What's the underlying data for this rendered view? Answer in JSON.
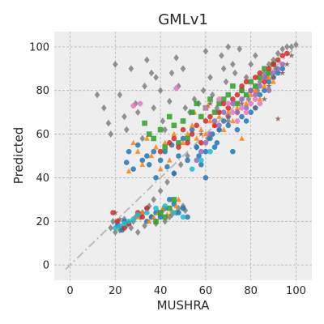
{
  "chart_data": {
    "type": "scatter",
    "title": "GMLv1",
    "xlabel": "MUSHRA",
    "ylabel": "Predicted",
    "xlim": [
      -7,
      107
    ],
    "ylim": [
      -7,
      107
    ],
    "xticks": [
      0,
      20,
      40,
      60,
      80,
      100
    ],
    "yticks": [
      0,
      20,
      40,
      60,
      80,
      100
    ],
    "grid": true,
    "legend": "none",
    "reference_line": {
      "from": [
        -2,
        -2
      ],
      "to": [
        100,
        100
      ],
      "color": "#bbbbbb",
      "style": "dashdot"
    },
    "series": [
      {
        "color": "#7f7f7f",
        "marker": "diamond",
        "points": [
          [
            12,
            78
          ],
          [
            15,
            72
          ],
          [
            17,
            65
          ],
          [
            18,
            60
          ],
          [
            20,
            92
          ],
          [
            22,
            78
          ],
          [
            24,
            68
          ],
          [
            25,
            62
          ],
          [
            27,
            90
          ],
          [
            29,
            74
          ],
          [
            30,
            70
          ],
          [
            32,
            58
          ],
          [
            33,
            82
          ],
          [
            34,
            94
          ],
          [
            36,
            88
          ],
          [
            37,
            72
          ],
          [
            38,
            86
          ],
          [
            40,
            80
          ],
          [
            41,
            66
          ],
          [
            42,
            62
          ],
          [
            44,
            75
          ],
          [
            45,
            88
          ],
          [
            47,
            95
          ],
          [
            48,
            82
          ],
          [
            50,
            90
          ],
          [
            51,
            72
          ],
          [
            53,
            70
          ],
          [
            55,
            76
          ],
          [
            57,
            74
          ],
          [
            59,
            80
          ],
          [
            60,
            98
          ],
          [
            62,
            86
          ],
          [
            63,
            78
          ],
          [
            65,
            72
          ],
          [
            67,
            96
          ],
          [
            68,
            90
          ],
          [
            69,
            84
          ],
          [
            70,
            100
          ],
          [
            72,
            92
          ],
          [
            73,
            88
          ],
          [
            75,
            99
          ],
          [
            76,
            80
          ],
          [
            78,
            86
          ],
          [
            80,
            92
          ],
          [
            82,
            96
          ],
          [
            84,
            84
          ],
          [
            86,
            88
          ],
          [
            88,
            92
          ],
          [
            90,
            94
          ],
          [
            92,
            97
          ],
          [
            94,
            99
          ],
          [
            96,
            100
          ],
          [
            98,
            100
          ],
          [
            100,
            101
          ],
          [
            91,
            90
          ],
          [
            87,
            86
          ],
          [
            83,
            80
          ],
          [
            79,
            76
          ],
          [
            74,
            70
          ],
          [
            70,
            66
          ],
          [
            66,
            62
          ],
          [
            61,
            58
          ],
          [
            56,
            54
          ],
          [
            52,
            50
          ],
          [
            49,
            46
          ],
          [
            46,
            42
          ],
          [
            43,
            38
          ],
          [
            40,
            34
          ],
          [
            37,
            30
          ],
          [
            34,
            26
          ],
          [
            31,
            22
          ],
          [
            28,
            20
          ],
          [
            25,
            18
          ],
          [
            22,
            16
          ],
          [
            20,
            15
          ],
          [
            18,
            17
          ],
          [
            21,
            19
          ],
          [
            24,
            21
          ],
          [
            27,
            17
          ],
          [
            30,
            15
          ],
          [
            33,
            18
          ],
          [
            36,
            22
          ],
          [
            39,
            24
          ],
          [
            42,
            20
          ],
          [
            45,
            23
          ],
          [
            48,
            26
          ],
          [
            51,
            25
          ],
          [
            19,
            20
          ],
          [
            23,
            17
          ],
          [
            26,
            19
          ],
          [
            29,
            22
          ],
          [
            32,
            24
          ],
          [
            35,
            27
          ],
          [
            38,
            19
          ],
          [
            41,
            25
          ],
          [
            44,
            22
          ],
          [
            47,
            24
          ],
          [
            50,
            27
          ]
        ]
      },
      {
        "color": "#1f77b4",
        "marker": "circle",
        "points": [
          [
            21,
            18
          ],
          [
            23,
            16
          ],
          [
            24,
            20
          ],
          [
            25,
            47
          ],
          [
            26,
            52
          ],
          [
            28,
            44
          ],
          [
            30,
            55
          ],
          [
            32,
            48
          ],
          [
            34,
            50
          ],
          [
            35,
            46
          ],
          [
            37,
            52
          ],
          [
            38,
            40
          ],
          [
            40,
            48
          ],
          [
            42,
            52
          ],
          [
            43,
            45
          ],
          [
            45,
            55
          ],
          [
            46,
            42
          ],
          [
            48,
            50
          ],
          [
            50,
            58
          ],
          [
            52,
            48
          ],
          [
            54,
            62
          ],
          [
            56,
            54
          ],
          [
            57,
            50
          ],
          [
            58,
            46
          ],
          [
            60,
            52
          ],
          [
            62,
            58
          ],
          [
            63,
            60
          ],
          [
            65,
            56
          ],
          [
            66,
            62
          ],
          [
            68,
            66
          ],
          [
            70,
            64
          ],
          [
            72,
            52
          ],
          [
            74,
            62
          ],
          [
            76,
            68
          ],
          [
            78,
            66
          ],
          [
            80,
            70
          ],
          [
            82,
            72
          ],
          [
            84,
            78
          ],
          [
            86,
            80
          ],
          [
            88,
            84
          ],
          [
            90,
            86
          ],
          [
            92,
            88
          ],
          [
            94,
            90
          ],
          [
            44,
            30
          ],
          [
            46,
            28
          ],
          [
            48,
            24
          ],
          [
            50,
            26
          ],
          [
            52,
            22
          ],
          [
            40,
            22
          ],
          [
            42,
            26
          ],
          [
            38,
            24
          ],
          [
            36,
            22
          ],
          [
            34,
            20
          ],
          [
            60,
            40
          ],
          [
            64,
            54
          ]
        ]
      },
      {
        "color": "#ff7f0e",
        "marker": "triangle",
        "points": [
          [
            26,
            43
          ],
          [
            28,
            56
          ],
          [
            30,
            52
          ],
          [
            32,
            46
          ],
          [
            34,
            58
          ],
          [
            36,
            50
          ],
          [
            38,
            54
          ],
          [
            40,
            44
          ],
          [
            42,
            56
          ],
          [
            44,
            48
          ],
          [
            46,
            60
          ],
          [
            48,
            30
          ],
          [
            50,
            56
          ],
          [
            52,
            60
          ],
          [
            54,
            64
          ],
          [
            56,
            58
          ],
          [
            58,
            62
          ],
          [
            60,
            60
          ],
          [
            62,
            66
          ],
          [
            64,
            64
          ],
          [
            66,
            68
          ],
          [
            68,
            62
          ],
          [
            70,
            70
          ],
          [
            72,
            66
          ],
          [
            74,
            72
          ],
          [
            76,
            58
          ],
          [
            78,
            74
          ],
          [
            80,
            78
          ],
          [
            82,
            80
          ],
          [
            84,
            76
          ],
          [
            86,
            82
          ],
          [
            88,
            86
          ],
          [
            90,
            84
          ],
          [
            35,
            20
          ],
          [
            37,
            22
          ],
          [
            39,
            24
          ],
          [
            41,
            26
          ],
          [
            43,
            23
          ],
          [
            45,
            25
          ],
          [
            47,
            27
          ],
          [
            30,
            22
          ],
          [
            32,
            24
          ],
          [
            55,
            70
          ],
          [
            61,
            73
          ]
        ]
      },
      {
        "color": "#2ca02c",
        "marker": "square",
        "points": [
          [
            33,
            65
          ],
          [
            35,
            60
          ],
          [
            37,
            58
          ],
          [
            40,
            62
          ],
          [
            42,
            54
          ],
          [
            44,
            68
          ],
          [
            46,
            64
          ],
          [
            48,
            56
          ],
          [
            50,
            66
          ],
          [
            52,
            58
          ],
          [
            54,
            70
          ],
          [
            56,
            74
          ],
          [
            58,
            68
          ],
          [
            60,
            72
          ],
          [
            62,
            76
          ],
          [
            64,
            70
          ],
          [
            66,
            74
          ],
          [
            68,
            76
          ],
          [
            70,
            78
          ],
          [
            72,
            82
          ],
          [
            74,
            74
          ],
          [
            76,
            80
          ],
          [
            78,
            78
          ],
          [
            80,
            84
          ],
          [
            82,
            82
          ],
          [
            84,
            86
          ],
          [
            86,
            90
          ],
          [
            88,
            88
          ],
          [
            90,
            92
          ],
          [
            46,
            30
          ],
          [
            44,
            26
          ],
          [
            42,
            22
          ],
          [
            40,
            24
          ],
          [
            38,
            20
          ]
        ]
      },
      {
        "color": "#d62728",
        "marker": "circle",
        "points": [
          [
            19,
            24
          ],
          [
            21,
            20
          ],
          [
            24,
            17
          ],
          [
            26,
            19
          ],
          [
            30,
            24
          ],
          [
            32,
            22
          ],
          [
            34,
            26
          ],
          [
            40,
            52
          ],
          [
            44,
            56
          ],
          [
            46,
            58
          ],
          [
            48,
            54
          ],
          [
            50,
            62
          ],
          [
            52,
            56
          ],
          [
            54,
            60
          ],
          [
            56,
            64
          ],
          [
            58,
            56
          ],
          [
            60,
            66
          ],
          [
            62,
            68
          ],
          [
            64,
            64
          ],
          [
            66,
            70
          ],
          [
            68,
            74
          ],
          [
            70,
            72
          ],
          [
            72,
            76
          ],
          [
            74,
            78
          ],
          [
            76,
            82
          ],
          [
            78,
            84
          ],
          [
            80,
            80
          ],
          [
            82,
            86
          ],
          [
            84,
            88
          ],
          [
            86,
            84
          ],
          [
            88,
            90
          ],
          [
            90,
            92
          ],
          [
            92,
            94
          ],
          [
            94,
            96
          ],
          [
            96,
            97
          ]
        ]
      },
      {
        "color": "#9467bd",
        "marker": "circle",
        "points": [
          [
            56,
            48
          ],
          [
            58,
            52
          ],
          [
            60,
            56
          ],
          [
            62,
            60
          ],
          [
            64,
            66
          ],
          [
            66,
            64
          ],
          [
            68,
            70
          ],
          [
            70,
            68
          ],
          [
            72,
            74
          ],
          [
            74,
            70
          ],
          [
            76,
            76
          ],
          [
            78,
            72
          ],
          [
            80,
            80
          ],
          [
            82,
            78
          ],
          [
            84,
            82
          ],
          [
            86,
            86
          ],
          [
            88,
            80
          ],
          [
            90,
            88
          ],
          [
            92,
            90
          ],
          [
            94,
            92
          ]
        ]
      },
      {
        "color": "#e377c2",
        "marker": "cross",
        "points": [
          [
            28,
            73
          ],
          [
            31,
            74
          ],
          [
            47,
            81
          ],
          [
            60,
            72
          ],
          [
            66,
            76
          ],
          [
            70,
            74
          ],
          [
            72,
            70
          ],
          [
            74,
            66
          ],
          [
            76,
            72
          ],
          [
            78,
            70
          ],
          [
            80,
            74
          ],
          [
            82,
            76
          ],
          [
            84,
            74
          ]
        ]
      },
      {
        "color": "#8c564b",
        "marker": "star",
        "points": [
          [
            62,
            74
          ],
          [
            66,
            70
          ],
          [
            70,
            68
          ],
          [
            76,
            74
          ],
          [
            82,
            72
          ],
          [
            86,
            76
          ],
          [
            88,
            82
          ],
          [
            90,
            86
          ],
          [
            92,
            67
          ],
          [
            94,
            88
          ],
          [
            96,
            92
          ],
          [
            98,
            96
          ],
          [
            20,
            24
          ],
          [
            22,
            21
          ],
          [
            58,
            60
          ]
        ]
      },
      {
        "color": "#17becf",
        "marker": "circle",
        "points": [
          [
            20,
            17
          ],
          [
            22,
            18
          ],
          [
            24,
            19
          ],
          [
            26,
            20
          ],
          [
            28,
            21
          ],
          [
            30,
            23
          ],
          [
            34,
            24
          ],
          [
            38,
            26
          ],
          [
            42,
            27
          ],
          [
            46,
            24
          ],
          [
            50,
            22
          ],
          [
            54,
            44
          ],
          [
            58,
            48
          ],
          [
            62,
            52
          ]
        ]
      }
    ]
  }
}
